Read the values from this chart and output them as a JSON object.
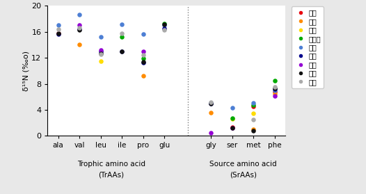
{
  "regions": [
    "여수",
    "통영",
    "보령",
    "새만금",
    "위도",
    "홍성",
    "신안",
    "당진",
    "중국"
  ],
  "colors": [
    "#e8000d",
    "#ff8c00",
    "#ffdd00",
    "#00aa00",
    "#4d7fd4",
    "#00008b",
    "#9400d3",
    "#111111",
    "#aaaaaa"
  ],
  "trophic_aas": [
    "ala",
    "val",
    "leu",
    "ile",
    "pro",
    "glu"
  ],
  "source_aas": [
    "gly",
    "ser",
    "met",
    "phe"
  ],
  "data": {
    "ala": [
      15.8,
      null,
      null,
      null,
      17.0,
      15.7,
      null,
      15.8,
      16.4
    ],
    "val": [
      null,
      14.0,
      null,
      null,
      18.7,
      16.4,
      17.0,
      16.3,
      16.6
    ],
    "leu": [
      null,
      null,
      11.5,
      null,
      15.2,
      13.0,
      13.2,
      12.7,
      12.6
    ],
    "ile": [
      null,
      null,
      null,
      15.2,
      17.2,
      13.0,
      null,
      13.0,
      15.8
    ],
    "pro": [
      null,
      9.2,
      null,
      11.9,
      15.6,
      11.3,
      13.0,
      11.4,
      12.4
    ],
    "glu": [
      null,
      null,
      null,
      17.3,
      17.0,
      16.5,
      null,
      17.1,
      16.3
    ],
    "gly": [
      null,
      3.6,
      null,
      null,
      5.1,
      5.0,
      0.5,
      5.0,
      5.2
    ],
    "ser": [
      1.3,
      null,
      2.6,
      2.7,
      4.3,
      null,
      1.2,
      1.2,
      null
    ],
    "met": [
      4.5,
      1.0,
      3.5,
      4.7,
      5.1,
      null,
      null,
      0.8,
      2.5
    ],
    "phe": [
      6.8,
      6.5,
      null,
      8.5,
      7.0,
      7.2,
      6.1,
      7.3,
      7.5
    ]
  },
  "ylim": [
    0,
    20
  ],
  "yticks": [
    0,
    4,
    8,
    12,
    16,
    20
  ],
  "ylabel": "δ¹⁵N (‰o)",
  "tr_label_line1": "Trophic amino acid",
  "tr_label_line2": "(TrAAs)",
  "sr_label_line1": "Source amino acid",
  "sr_label_line2": "(SrAAs)",
  "background_color": "#e8e8e8",
  "plot_bg": "#ffffff",
  "figsize": [
    5.26,
    2.79
  ],
  "dpi": 100
}
